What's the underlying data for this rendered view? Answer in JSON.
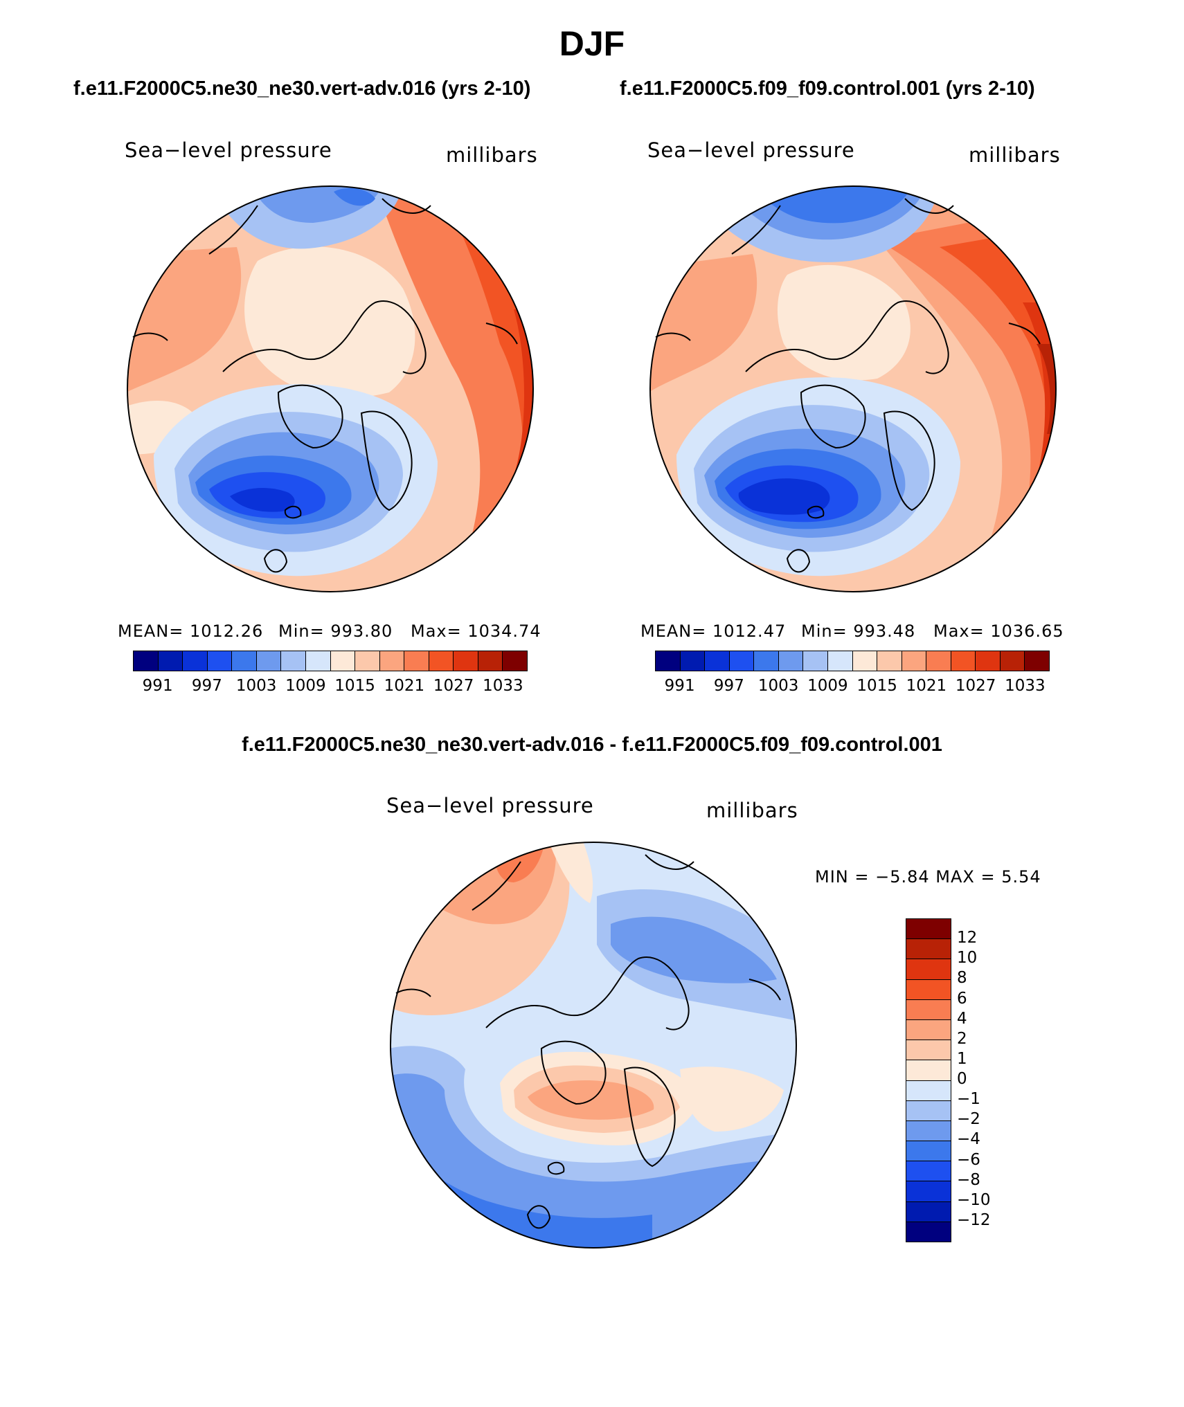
{
  "figure": {
    "season": "DJF",
    "case_a": "f.e11.F2000C5.ne30_ne30.vert-adv.016 (yrs 2-10)",
    "case_b": "f.e11.F2000C5.f09_f09.control.001 (yrs 2-10)",
    "diff_title": "f.e11.F2000C5.ne30_ne30.vert-adv.016 - f.e11.F2000C5.f09_f09.control.001"
  },
  "panels": {
    "left": {
      "variable": "Sea−level pressure",
      "units": "millibars",
      "mean": "MEAN=  1012.26",
      "min": "Min=  993.80",
      "max": "Max=  1034.74"
    },
    "right": {
      "variable": "Sea−level pressure",
      "units": "millibars",
      "mean": "MEAN=  1012.47",
      "min": "Min=  993.48",
      "max": "Max=  1036.65"
    },
    "diff": {
      "variable": "Sea−level pressure",
      "units": "millibars",
      "minmax": "MIN =    −5.84  MAX =      5.54"
    }
  },
  "colorbar_abs": {
    "colors": [
      "#00007f",
      "#001bb0",
      "#0a32d8",
      "#1e50f0",
      "#3c78ec",
      "#6e9aee",
      "#a6c2f4",
      "#d6e6fb",
      "#fde9d8",
      "#fcc8ab",
      "#fba57f",
      "#f97d52",
      "#f25424",
      "#df3510",
      "#b82206",
      "#7e0000"
    ],
    "labels": [
      "991",
      "997",
      "1003",
      "1009",
      "1015",
      "1021",
      "1027",
      "1033"
    ]
  },
  "colorbar_diff": {
    "colors_top_to_bottom": [
      "#7e0000",
      "#b82206",
      "#df3510",
      "#f25424",
      "#f97d52",
      "#fba57f",
      "#fcc8ab",
      "#fde9d8",
      "#d6e6fb",
      "#a6c2f4",
      "#6e9aee",
      "#3c78ec",
      "#1e50f0",
      "#0a32d8",
      "#001bb0",
      "#00007f"
    ],
    "labels": [
      "12",
      "10",
      "8",
      "6",
      "4",
      "2",
      "1",
      "0",
      "−1",
      "−2",
      "−4",
      "−6",
      "−8",
      "−10",
      "−12"
    ]
  }
}
